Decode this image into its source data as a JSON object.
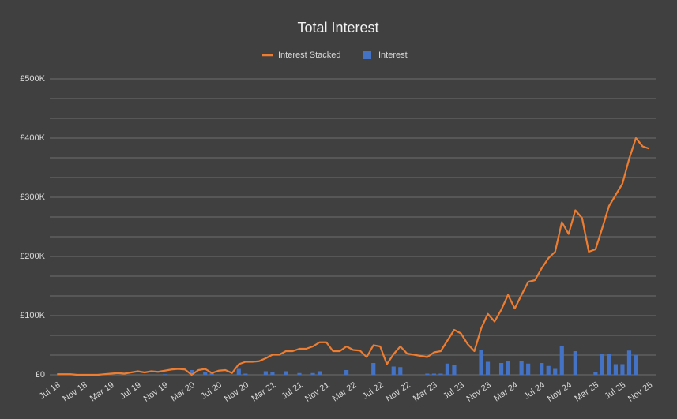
{
  "chart_data": {
    "type": "combo",
    "title": "Total Interest",
    "categories": [
      "Jul 18",
      null,
      null,
      null,
      "Nov 18",
      null,
      null,
      null,
      "Mar 19",
      null,
      null,
      null,
      "Jul 19",
      null,
      null,
      null,
      "Nov 19",
      null,
      null,
      null,
      "Mar 20",
      null,
      null,
      null,
      "Jul 20",
      null,
      null,
      null,
      "Nov 20",
      null,
      null,
      null,
      "Mar 21",
      null,
      null,
      null,
      "Jul 21",
      null,
      null,
      null,
      "Nov 21",
      null,
      null,
      null,
      "Mar 22",
      null,
      null,
      null,
      "Jul 22",
      null,
      null,
      null,
      "Nov 22",
      null,
      null,
      null,
      "Mar 23",
      null,
      null,
      null,
      "Jul 23",
      null,
      null,
      null,
      "Nov 23",
      null,
      null,
      null,
      "Mar 24",
      null,
      null,
      null,
      "Jul 24",
      null,
      null,
      null,
      "Nov 24",
      null,
      null,
      null,
      "Mar 25",
      null,
      null,
      null,
      "Jul 25",
      null,
      null,
      null,
      "Nov 25"
    ],
    "series": [
      {
        "name": "Interest Stacked",
        "type": "line",
        "color": "#ed7d31",
        "values": [
          1000,
          1000,
          1000,
          0,
          0,
          0,
          0,
          1000,
          2000,
          3000,
          2000,
          4000,
          6000,
          4000,
          6000,
          5000,
          7000,
          9000,
          10000,
          9000,
          0,
          8000,
          10000,
          3000,
          7000,
          8000,
          3000,
          18000,
          22000,
          22000,
          23000,
          28000,
          34000,
          34000,
          40000,
          40000,
          44000,
          44000,
          48000,
          55000,
          55000,
          40000,
          40000,
          48000,
          42000,
          41000,
          30000,
          50000,
          48000,
          18000,
          35000,
          48000,
          36000,
          34000,
          32000,
          30000,
          38000,
          40000,
          58000,
          76000,
          70000,
          52000,
          40000,
          78000,
          103000,
          90000,
          110000,
          135000,
          112000,
          135000,
          157000,
          160000,
          180000,
          197000,
          208000,
          258000,
          238000,
          278000,
          265000,
          208000,
          212000,
          248000,
          285000,
          304000,
          323000,
          365000,
          400000,
          386000,
          382000
        ]
      },
      {
        "name": "Interest",
        "type": "bar",
        "color": "#4472c4",
        "values": [
          0,
          0,
          0,
          0,
          0,
          1000,
          0,
          0,
          0,
          0,
          0,
          0,
          0,
          0,
          0,
          0,
          1000,
          0,
          0,
          0,
          8000,
          0,
          5000,
          4000,
          0,
          0,
          0,
          10000,
          2000,
          0,
          0,
          6000,
          5000,
          0,
          6000,
          0,
          3000,
          0,
          3000,
          6000,
          0,
          0,
          0,
          8000,
          0,
          0,
          0,
          20000,
          0,
          0,
          14000,
          13000,
          0,
          0,
          0,
          2000,
          2000,
          2000,
          19000,
          16000,
          0,
          0,
          0,
          42000,
          22000,
          0,
          20000,
          23000,
          0,
          24000,
          19000,
          0,
          20000,
          15000,
          10000,
          48000,
          0,
          40000,
          0,
          0,
          4000,
          35000,
          35000,
          18000,
          18000,
          41000,
          34000,
          0,
          0
        ]
      }
    ],
    "ylim": [
      0,
      500000
    ],
    "yticks": [
      {
        "value": 0,
        "label": "£0"
      },
      {
        "value": 100000,
        "label": "£100K"
      },
      {
        "value": 200000,
        "label": "£200K"
      },
      {
        "value": 300000,
        "label": "£300K"
      },
      {
        "value": 400000,
        "label": "£400K"
      },
      {
        "value": 500000,
        "label": "£500K"
      }
    ],
    "grid": true
  }
}
